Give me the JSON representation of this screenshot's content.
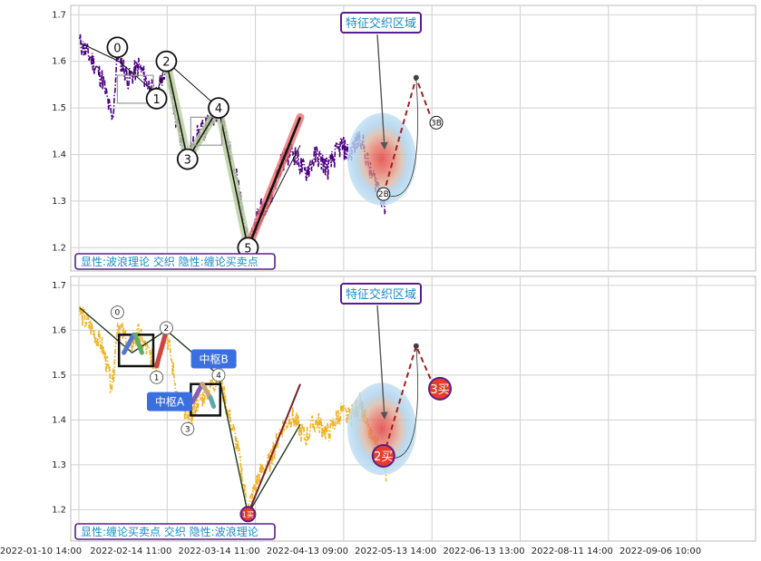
{
  "chart_data": [
    {
      "type": "line",
      "panel": "top",
      "ylim": [
        1.15,
        1.72
      ],
      "y_ticks": [
        1.2,
        1.3,
        1.4,
        1.5,
        1.6,
        1.7
      ],
      "grid": true,
      "price_color": "#4b0082",
      "caption": "显性:波浪理论 交织 隐性:缠论买卖点",
      "callout": "特征交织区域",
      "wave_points": [
        {
          "label": "0",
          "x": 0.23,
          "y": 1.63
        },
        {
          "label": "1",
          "x": 0.47,
          "y": 1.52
        },
        {
          "label": "2",
          "x": 0.53,
          "y": 1.6
        },
        {
          "label": "3",
          "x": 0.66,
          "y": 1.39
        },
        {
          "label": "4",
          "x": 0.85,
          "y": 1.5
        },
        {
          "label": "5",
          "x": 1.03,
          "y": 1.2
        },
        {
          "label": "2B",
          "x": 1.86,
          "y": 1.315
        },
        {
          "label": "3B",
          "x": 2.05,
          "y": 1.48
        }
      ],
      "overview_line": [
        [
          0.0,
          1.64
        ],
        [
          0.24,
          1.6
        ],
        [
          0.47,
          1.53
        ],
        [
          0.53,
          1.6
        ],
        [
          0.85,
          1.5
        ],
        [
          1.03,
          1.2
        ],
        [
          1.35,
          1.42
        ]
      ]
    },
    {
      "type": "line",
      "panel": "bottom",
      "ylim": [
        1.13,
        1.72
      ],
      "y_ticks": [
        1.2,
        1.3,
        1.4,
        1.5,
        1.6,
        1.7
      ],
      "grid": true,
      "price_color": "#f0b429",
      "caption": "显性:缠论买卖点 交织 隐性:波浪理论",
      "callout": "特征交织区域",
      "center_labels": [
        "中枢A",
        "中枢B"
      ],
      "wave_points": [
        {
          "label": "0",
          "x": 0.23,
          "y": 1.64
        },
        {
          "label": "1",
          "x": 0.47,
          "y": 1.495
        },
        {
          "label": "2",
          "x": 0.53,
          "y": 1.605
        },
        {
          "label": "3",
          "x": 0.66,
          "y": 1.38
        },
        {
          "label": "4",
          "x": 0.85,
          "y": 1.5
        }
      ],
      "buy_points": [
        {
          "label": "1买",
          "x": 1.03,
          "y": 1.19
        },
        {
          "label": "2买",
          "x": 1.86,
          "y": 1.32
        },
        {
          "label": "3买",
          "x": 2.05,
          "y": 1.49
        }
      ],
      "overview_line": [
        [
          0.0,
          1.65
        ],
        [
          0.32,
          1.55
        ],
        [
          0.53,
          1.6
        ],
        [
          0.85,
          1.5
        ],
        [
          1.03,
          1.19
        ],
        [
          1.35,
          1.39
        ]
      ]
    }
  ],
  "x_tick_labels": [
    "2022-01-10 14:00",
    "2022-02-14 11:00",
    "2022-03-14 11:00",
    "2022-04-13 09:00",
    "2022-05-13 14:00",
    "2022-06-13 13:00",
    "2022-08-11 14:00",
    "2022-09-06 10:00"
  ],
  "colors": {
    "grid": "#d0d0d0",
    "callout_text": "#1a8cc8",
    "callout_border": "#5a1e8c",
    "center_box_fill": "#3a6fe0",
    "buy_point_fill": "#e83b2a",
    "projection": "#a31f1f",
    "trend_highlight": "#f07070"
  }
}
